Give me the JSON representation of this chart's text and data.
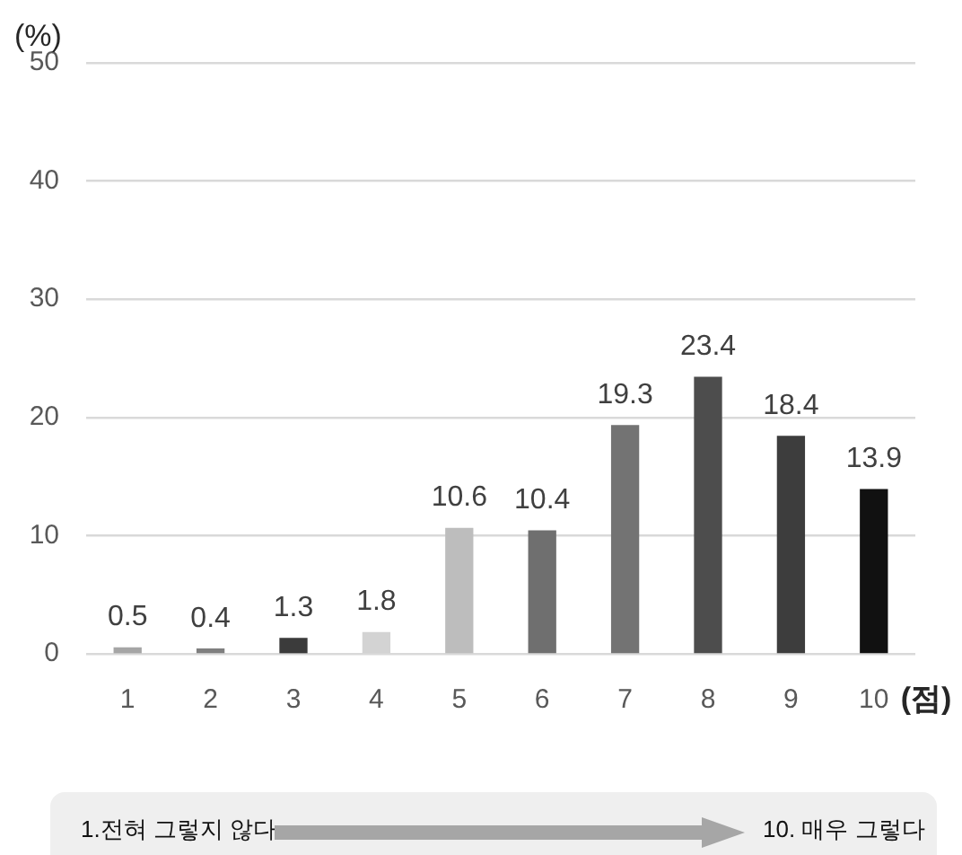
{
  "chart_data": {
    "type": "bar",
    "ylabel": "(%)",
    "xlabel": "(점)",
    "categories": [
      "1",
      "2",
      "3",
      "4",
      "5",
      "6",
      "7",
      "8",
      "9",
      "10"
    ],
    "values": [
      0.5,
      0.4,
      1.3,
      1.8,
      10.6,
      10.4,
      19.3,
      23.4,
      18.4,
      13.9
    ],
    "colors": [
      "#a5a5a5",
      "#7f7f7f",
      "#3b3b3b",
      "#d3d3d3",
      "#bdbdbd",
      "#6f6f6f",
      "#737373",
      "#4d4d4d",
      "#3d3d3d",
      "#111111"
    ],
    "ylim": [
      0,
      50
    ],
    "yticks": [
      0,
      10,
      20,
      30,
      40,
      50
    ],
    "grid": "y",
    "legend": false,
    "data_labels": true,
    "annotations": [
      "1.전혀 그렇지 않다",
      "10. 매우 그렇다"
    ]
  }
}
